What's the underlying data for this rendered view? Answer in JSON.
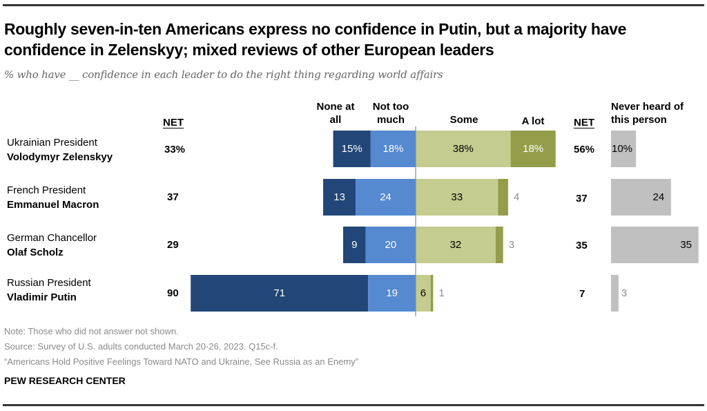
{
  "title": "Roughly seven-in-ten Americans express no confidence in Putin, but a majority have confidence in Zelenskyy; mixed reviews of other European leaders",
  "subtitle": "% who have __ confidence in each leader to do the right thing regarding world affairs",
  "headers": {
    "net_left": "NET",
    "none_at_all": [
      "None at",
      "all"
    ],
    "not_too_much": [
      "Not too",
      "much"
    ],
    "some": "Some",
    "a_lot": "A lot",
    "net_right": "NET",
    "never_heard": [
      "Never heard of",
      "this person"
    ]
  },
  "colors": {
    "none_at_all": "#214677",
    "not_too_much": "#5589d0",
    "some": "#c4cc8f",
    "a_lot": "#939d4a",
    "never_heard": "#c0c0c0",
    "axis": "#8c8c8c",
    "outside_label": "#8c8c8c"
  },
  "chart_data": {
    "type": "bar",
    "subtype": "diverging-stacked-bar",
    "title": "Roughly seven-in-ten Americans express no confidence in Putin, but a majority have confidence in Zelenskyy; mixed reviews of other European leaders",
    "subtitle": "% who have __ confidence in each leader to do the right thing regarding world affairs",
    "units": "%",
    "categories": [
      {
        "title": "Ukrainian President",
        "name": "Volodymyr Zelenskyy"
      },
      {
        "title": "French President",
        "name": "Emmanuel Macron"
      },
      {
        "title": "German Chancellor",
        "name": "Olaf Scholz"
      },
      {
        "title": "Russian President",
        "name": "Vladimir Putin"
      }
    ],
    "series": [
      {
        "name": "None at all",
        "side": "negative",
        "values": [
          15,
          13,
          9,
          71
        ],
        "labels": [
          "15%",
          "13",
          "9",
          "71"
        ]
      },
      {
        "name": "Not too much",
        "side": "negative",
        "values": [
          18,
          24,
          20,
          19
        ],
        "labels": [
          "18%",
          "24",
          "20",
          "19"
        ]
      },
      {
        "name": "Some",
        "side": "positive",
        "values": [
          38,
          33,
          32,
          6
        ],
        "labels": [
          "38%",
          "33",
          "32",
          "6"
        ]
      },
      {
        "name": "A lot",
        "side": "positive",
        "values": [
          18,
          4,
          3,
          1
        ],
        "labels": [
          "18%",
          "4",
          "3",
          "1"
        ]
      }
    ],
    "net_no_confidence": {
      "label": "NET",
      "values": [
        33,
        37,
        29,
        90
      ],
      "labels": [
        "33%",
        "37",
        "29",
        "90"
      ]
    },
    "net_confidence": {
      "label": "NET",
      "values": [
        56,
        37,
        35,
        7
      ],
      "labels": [
        "56%",
        "37",
        "35",
        "7"
      ]
    },
    "never_heard": {
      "name": "Never heard of this person",
      "values": [
        10,
        24,
        35,
        3
      ],
      "labels": [
        "10%",
        "24",
        "35",
        "3"
      ]
    },
    "legend": "top (column headers above bars)",
    "grid": false
  },
  "footer": {
    "note": "Note: Those who did not answer not shown.",
    "source": "Source: Survey of U.S. adults conducted March 20-26, 2023. Q15c-f.",
    "report": "“Americans Hold Positive Feelings Toward NATO and Ukraine, See Russia as an Enemy”",
    "brand": "PEW RESEARCH CENTER"
  }
}
